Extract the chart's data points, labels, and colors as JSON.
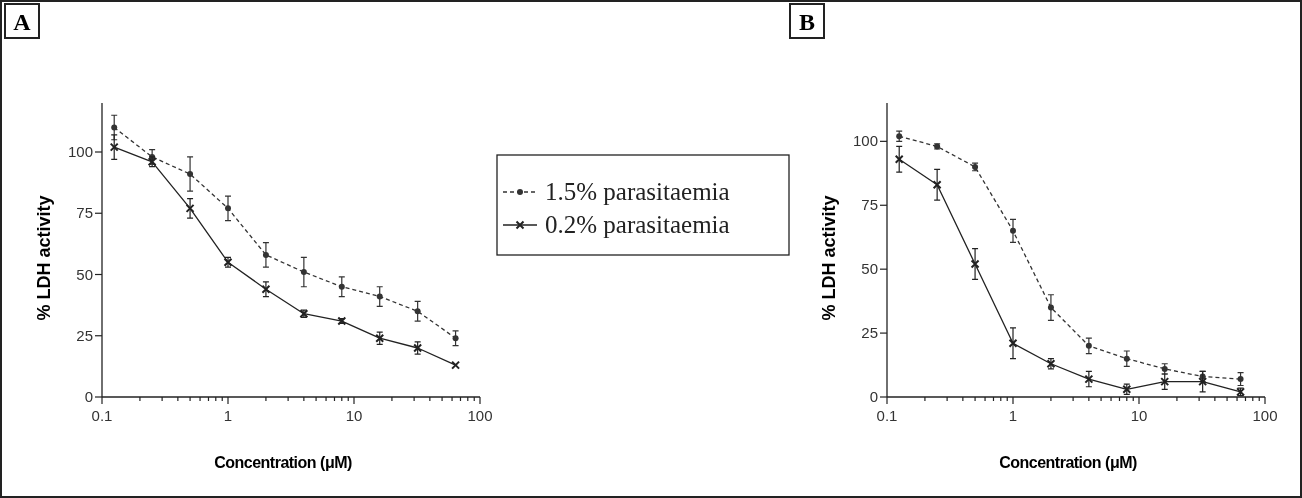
{
  "chart_data": [
    {
      "type": "line",
      "title": "A",
      "xlabel": "Concentration (μM)",
      "ylabel": "% LDH activity",
      "log": "x",
      "legend": "right",
      "grid": false,
      "x": [
        0.125,
        0.25,
        0.5,
        1,
        2,
        4,
        8,
        16,
        32,
        64
      ],
      "xlim": [
        0.1,
        100
      ],
      "xticks": [
        0.1,
        {
          "value": 0.2,
          "label": null
        },
        {
          "value": 0.3,
          "label": null
        },
        {
          "value": 0.4,
          "label": null
        },
        {
          "value": 0.5,
          "label": null
        },
        {
          "value": 0.6,
          "label": null
        },
        {
          "value": 0.7,
          "label": null
        },
        {
          "value": 0.8,
          "label": null
        },
        {
          "value": 0.9,
          "label": null
        },
        1,
        {
          "value": 2,
          "label": null
        },
        {
          "value": 3,
          "label": null
        },
        {
          "value": 4,
          "label": null
        },
        {
          "value": 5,
          "label": null
        },
        {
          "value": 6,
          "label": null
        },
        {
          "value": 7,
          "label": null
        },
        {
          "value": 8,
          "label": null
        },
        {
          "value": 9,
          "label": null
        },
        10,
        {
          "value": 20,
          "label": null
        },
        {
          "value": 30,
          "label": null
        },
        {
          "value": 40,
          "label": null
        },
        {
          "value": 50,
          "label": null
        },
        {
          "value": 60,
          "label": null
        },
        {
          "value": 70,
          "label": null
        },
        {
          "value": 80,
          "label": null
        },
        {
          "value": 90,
          "label": null
        },
        100
      ],
      "ylim": [
        0,
        120
      ],
      "yticks": [
        0,
        25,
        50,
        75,
        100
      ],
      "series": [
        {
          "name": "1.5% parasitaemia",
          "color": "#333333",
          "line_style": "dashed",
          "marker": "circle",
          "values": [
            110,
            98,
            91,
            77,
            58,
            51,
            45,
            41,
            35,
            24
          ],
          "errors": [
            5,
            3,
            7,
            5,
            5,
            6,
            4,
            4,
            4,
            3
          ]
        },
        {
          "name": "0.2% parasitaemia",
          "color": "#222222",
          "line_style": "solid",
          "marker": "cross",
          "values": [
            102,
            96,
            77,
            55,
            44,
            34,
            31,
            24,
            20,
            13
          ],
          "errors": [
            5,
            2,
            4,
            2,
            3,
            1.5,
            1,
            2.5,
            2.5,
            null
          ]
        }
      ]
    },
    {
      "type": "line",
      "title": "B",
      "xlabel": "Concentration (μM)",
      "ylabel": "% LDH activity",
      "log": "x",
      "legend": false,
      "grid": false,
      "x": [
        0.125,
        0.25,
        0.5,
        1,
        2,
        4,
        8,
        16,
        32,
        64
      ],
      "xlim": [
        0.1,
        100
      ],
      "xticks": [
        0.1,
        {
          "value": 0.2,
          "label": null
        },
        {
          "value": 0.3,
          "label": null
        },
        {
          "value": 0.4,
          "label": null
        },
        {
          "value": 0.5,
          "label": null
        },
        {
          "value": 0.6,
          "label": null
        },
        {
          "value": 0.7,
          "label": null
        },
        {
          "value": 0.8,
          "label": null
        },
        {
          "value": 0.9,
          "label": null
        },
        1,
        {
          "value": 2,
          "label": null
        },
        {
          "value": 3,
          "label": null
        },
        {
          "value": 4,
          "label": null
        },
        {
          "value": 5,
          "label": null
        },
        {
          "value": 6,
          "label": null
        },
        {
          "value": 7,
          "label": null
        },
        {
          "value": 8,
          "label": null
        },
        {
          "value": 9,
          "label": null
        },
        10,
        {
          "value": 20,
          "label": null
        },
        {
          "value": 30,
          "label": null
        },
        {
          "value": 40,
          "label": null
        },
        {
          "value": 50,
          "label": null
        },
        {
          "value": 60,
          "label": null
        },
        {
          "value": 70,
          "label": null
        },
        {
          "value": 80,
          "label": null
        },
        {
          "value": 90,
          "label": null
        },
        100
      ],
      "ylim": [
        0,
        115
      ],
      "yticks": [
        0,
        25,
        50,
        75,
        100
      ],
      "series": [
        {
          "color": "#333333",
          "line_style": "dashed",
          "marker": "circle",
          "values": [
            102,
            98,
            90,
            65,
            35,
            20,
            15,
            11,
            8,
            7
          ],
          "errors": [
            2,
            1,
            1.5,
            4.5,
            5,
            3,
            3,
            2,
            2,
            2.5
          ]
        },
        {
          "color": "#222222",
          "line_style": "solid",
          "marker": "cross",
          "values": [
            93,
            83,
            52,
            21,
            13,
            7,
            3,
            6,
            6,
            2
          ],
          "errors": [
            5,
            6,
            6,
            6,
            2,
            3,
            2,
            3,
            4,
            1.5
          ]
        }
      ]
    }
  ]
}
